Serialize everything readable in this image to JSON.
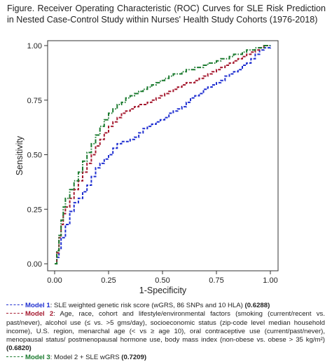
{
  "title": "Figure. Receiver Operating Characteristic (ROC) Curves for SLE Risk Prediction in Nested Case-Control Study within Nurses' Health Study Cohorts (1976-2018)",
  "chart_data": {
    "type": "line",
    "xlabel": "1-Specificity",
    "ylabel": "Sensitivity",
    "xlim": [
      0,
      1
    ],
    "ylim": [
      0,
      1
    ],
    "x_ticks": [
      "0.00",
      "0.25",
      "0.50",
      "0.75",
      "1.00"
    ],
    "y_ticks": [
      "0.00",
      "0.25",
      "0.50",
      "0.75",
      "1.00"
    ],
    "grid": false,
    "series": [
      {
        "name": "Model 1",
        "color": "#1f2fd0",
        "style": "dashed",
        "points": [
          [
            0,
            0
          ],
          [
            0.01,
            0.03
          ],
          [
            0.02,
            0.07
          ],
          [
            0.03,
            0.12
          ],
          [
            0.05,
            0.18
          ],
          [
            0.07,
            0.24
          ],
          [
            0.09,
            0.28
          ],
          [
            0.11,
            0.3
          ],
          [
            0.13,
            0.33
          ],
          [
            0.15,
            0.36
          ],
          [
            0.17,
            0.4
          ],
          [
            0.19,
            0.44
          ],
          [
            0.21,
            0.46
          ],
          [
            0.23,
            0.48
          ],
          [
            0.25,
            0.5
          ],
          [
            0.27,
            0.53
          ],
          [
            0.29,
            0.55
          ],
          [
            0.31,
            0.56
          ],
          [
            0.33,
            0.56
          ],
          [
            0.35,
            0.57
          ],
          [
            0.37,
            0.58
          ],
          [
            0.39,
            0.6
          ],
          [
            0.41,
            0.62
          ],
          [
            0.43,
            0.63
          ],
          [
            0.45,
            0.64
          ],
          [
            0.47,
            0.65
          ],
          [
            0.49,
            0.66
          ],
          [
            0.51,
            0.67
          ],
          [
            0.53,
            0.69
          ],
          [
            0.55,
            0.7
          ],
          [
            0.57,
            0.71
          ],
          [
            0.59,
            0.72
          ],
          [
            0.61,
            0.74
          ],
          [
            0.63,
            0.76
          ],
          [
            0.65,
            0.77
          ],
          [
            0.67,
            0.78
          ],
          [
            0.69,
            0.8
          ],
          [
            0.71,
            0.81
          ],
          [
            0.73,
            0.82
          ],
          [
            0.75,
            0.83
          ],
          [
            0.77,
            0.84
          ],
          [
            0.79,
            0.86
          ],
          [
            0.81,
            0.87
          ],
          [
            0.83,
            0.88
          ],
          [
            0.85,
            0.89
          ],
          [
            0.87,
            0.91
          ],
          [
            0.89,
            0.92
          ],
          [
            0.91,
            0.94
          ],
          [
            0.93,
            0.96
          ],
          [
            0.95,
            0.98
          ],
          [
            0.97,
            0.99
          ],
          [
            1.0,
            1.0
          ]
        ]
      },
      {
        "name": "Model 2",
        "color": "#a5192f",
        "style": "dashed",
        "points": [
          [
            0,
            0
          ],
          [
            0.01,
            0.05
          ],
          [
            0.02,
            0.12
          ],
          [
            0.03,
            0.18
          ],
          [
            0.04,
            0.23
          ],
          [
            0.05,
            0.26
          ],
          [
            0.07,
            0.3
          ],
          [
            0.09,
            0.34
          ],
          [
            0.11,
            0.38
          ],
          [
            0.13,
            0.42
          ],
          [
            0.15,
            0.46
          ],
          [
            0.17,
            0.5
          ],
          [
            0.19,
            0.54
          ],
          [
            0.21,
            0.57
          ],
          [
            0.23,
            0.6
          ],
          [
            0.25,
            0.63
          ],
          [
            0.27,
            0.65
          ],
          [
            0.29,
            0.67
          ],
          [
            0.31,
            0.69
          ],
          [
            0.33,
            0.7
          ],
          [
            0.35,
            0.71
          ],
          [
            0.37,
            0.72
          ],
          [
            0.39,
            0.73
          ],
          [
            0.41,
            0.73
          ],
          [
            0.43,
            0.74
          ],
          [
            0.45,
            0.75
          ],
          [
            0.47,
            0.76
          ],
          [
            0.49,
            0.77
          ],
          [
            0.51,
            0.78
          ],
          [
            0.53,
            0.79
          ],
          [
            0.55,
            0.8
          ],
          [
            0.57,
            0.81
          ],
          [
            0.59,
            0.82
          ],
          [
            0.61,
            0.83
          ],
          [
            0.63,
            0.83
          ],
          [
            0.65,
            0.84
          ],
          [
            0.67,
            0.85
          ],
          [
            0.69,
            0.86
          ],
          [
            0.71,
            0.87
          ],
          [
            0.73,
            0.88
          ],
          [
            0.75,
            0.89
          ],
          [
            0.77,
            0.9
          ],
          [
            0.79,
            0.91
          ],
          [
            0.81,
            0.92
          ],
          [
            0.83,
            0.93
          ],
          [
            0.85,
            0.94
          ],
          [
            0.87,
            0.95
          ],
          [
            0.89,
            0.96
          ],
          [
            0.91,
            0.97
          ],
          [
            0.93,
            0.98
          ],
          [
            0.95,
            0.99
          ],
          [
            0.97,
            1.0
          ],
          [
            1.0,
            1.0
          ]
        ]
      },
      {
        "name": "Model 3",
        "color": "#1a7a2e",
        "style": "dash-dot",
        "points": [
          [
            0,
            0
          ],
          [
            0.01,
            0.06
          ],
          [
            0.02,
            0.13
          ],
          [
            0.03,
            0.2
          ],
          [
            0.04,
            0.26
          ],
          [
            0.05,
            0.3
          ],
          [
            0.07,
            0.34
          ],
          [
            0.09,
            0.38
          ],
          [
            0.11,
            0.42
          ],
          [
            0.13,
            0.47
          ],
          [
            0.15,
            0.51
          ],
          [
            0.17,
            0.55
          ],
          [
            0.19,
            0.59
          ],
          [
            0.21,
            0.63
          ],
          [
            0.23,
            0.66
          ],
          [
            0.25,
            0.69
          ],
          [
            0.27,
            0.71
          ],
          [
            0.29,
            0.73
          ],
          [
            0.31,
            0.74
          ],
          [
            0.33,
            0.76
          ],
          [
            0.35,
            0.77
          ],
          [
            0.37,
            0.78
          ],
          [
            0.39,
            0.79
          ],
          [
            0.41,
            0.8
          ],
          [
            0.43,
            0.81
          ],
          [
            0.45,
            0.82
          ],
          [
            0.47,
            0.83
          ],
          [
            0.49,
            0.84
          ],
          [
            0.51,
            0.85
          ],
          [
            0.53,
            0.86
          ],
          [
            0.55,
            0.87
          ],
          [
            0.57,
            0.87
          ],
          [
            0.59,
            0.88
          ],
          [
            0.61,
            0.89
          ],
          [
            0.63,
            0.89
          ],
          [
            0.65,
            0.9
          ],
          [
            0.67,
            0.9
          ],
          [
            0.69,
            0.91
          ],
          [
            0.71,
            0.92
          ],
          [
            0.73,
            0.92
          ],
          [
            0.75,
            0.93
          ],
          [
            0.77,
            0.94
          ],
          [
            0.79,
            0.94
          ],
          [
            0.81,
            0.95
          ],
          [
            0.83,
            0.96
          ],
          [
            0.85,
            0.96
          ],
          [
            0.87,
            0.97
          ],
          [
            0.89,
            0.98
          ],
          [
            0.91,
            0.98
          ],
          [
            0.93,
            0.99
          ],
          [
            0.95,
            0.99
          ],
          [
            0.97,
            1.0
          ],
          [
            1.0,
            1.0
          ]
        ]
      }
    ]
  },
  "caption": {
    "lines": [
      {
        "prefix": "Model 1",
        "text": ": SLE weighted genetic risk score (wGRS, 86 SNPs and 10 HLA) ",
        "auc": "(0.6288)"
      },
      {
        "prefix": "Model 2",
        "text": ": Age, race, cohort and lifestyle/environmental factors (smoking (current/recent vs. past/never), alcohol use (≤ vs. >5 gms/day), socioeconomic status (zip-code level median household income), U.S. region, menarchal age (< vs ≥ age 10), oral contraceptive use (current/past/never), menopausal status/ postmenopausal hormone use, body mass index (non-obese vs. obese > 35 kg/m²) ",
        "auc": "(0.6820)"
      },
      {
        "prefix": "Model 3",
        "text": ": Model 2 + SLE wGRS ",
        "auc": "(0.7209)"
      }
    ]
  }
}
